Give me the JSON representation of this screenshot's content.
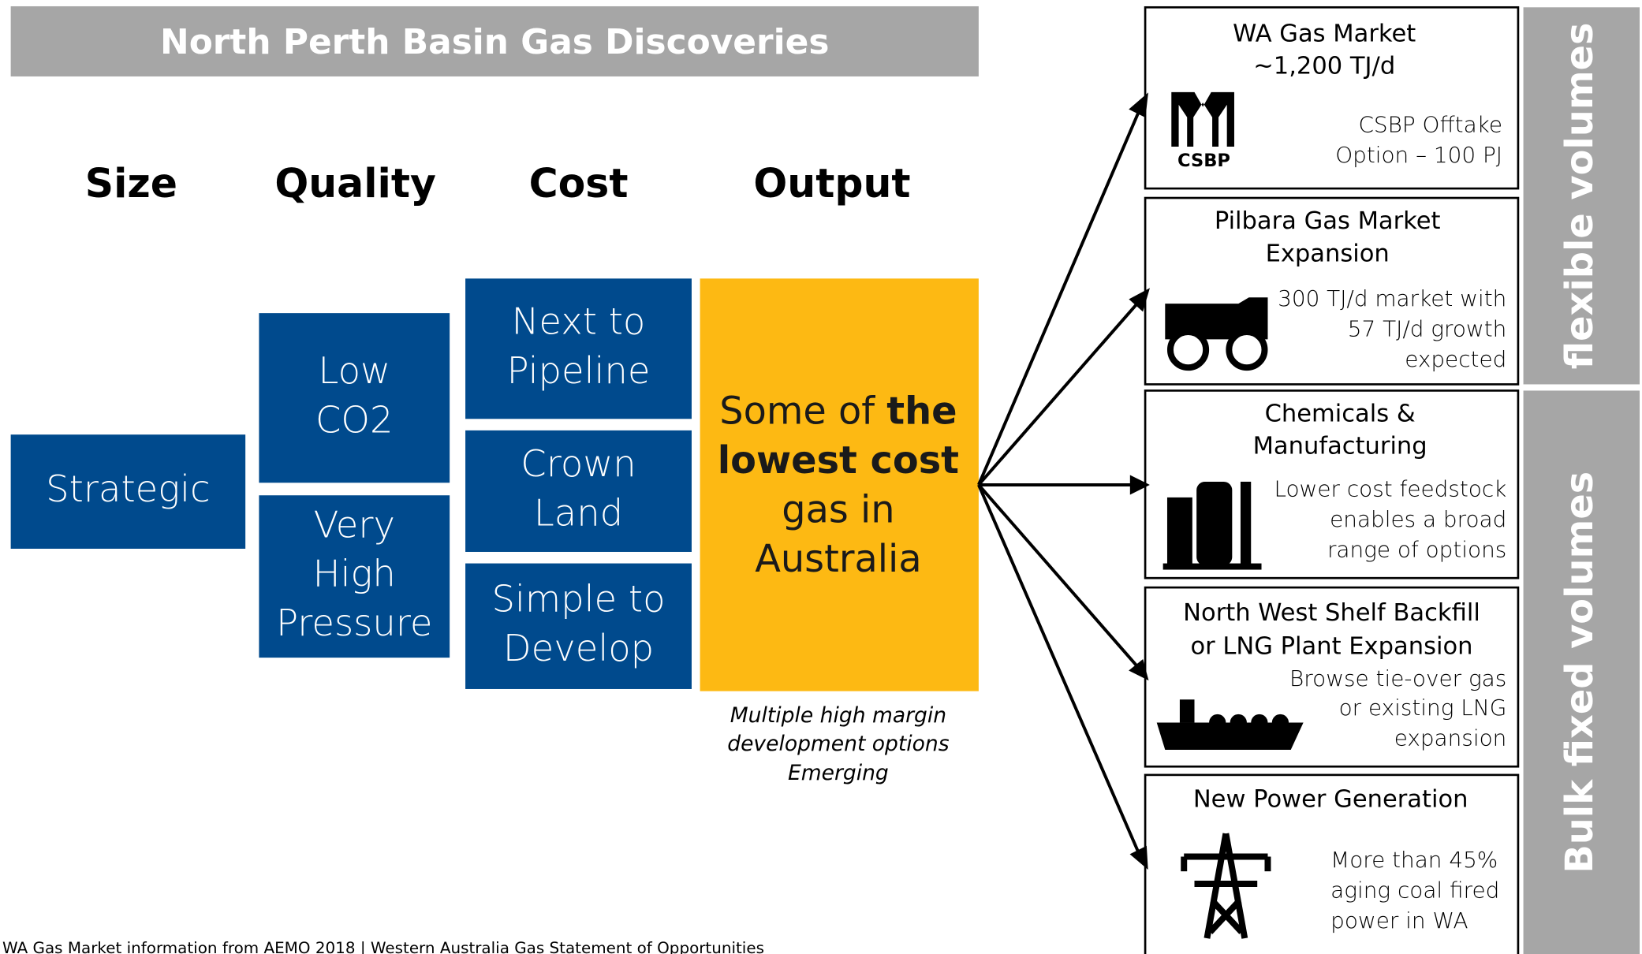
{
  "header": {
    "title": "North Perth Basin Gas Discoveries"
  },
  "columns": [
    "Size",
    "Quality",
    "Cost",
    "Output"
  ],
  "boxes": [
    {
      "lines": [
        "Strategic"
      ]
    },
    {
      "lines": [
        "Low",
        "CO2"
      ]
    },
    {
      "lines": [
        "Very",
        "High",
        "Pressure"
      ]
    },
    {
      "lines": [
        "Next to",
        "Pipeline"
      ]
    },
    {
      "lines": [
        "Crown",
        "Land"
      ]
    },
    {
      "lines": [
        "Simple to",
        "Develop"
      ]
    }
  ],
  "output": {
    "lines": [
      [
        {
          "text": "Some of "
        },
        {
          "text": "the",
          "bold": true
        }
      ],
      [
        {
          "text": "lowest cost",
          "bold": true
        }
      ],
      [
        {
          "text": "gas in"
        }
      ],
      [
        {
          "text": "Australia"
        }
      ]
    ],
    "note": [
      "Multiple high margin",
      "development options",
      "Emerging"
    ]
  },
  "markets": [
    {
      "title": [
        "WA Gas Market",
        "~1,200 TJ/d"
      ],
      "logo": "CSBP",
      "description": [
        "CSBP Offtake",
        "Option – 100 PJ"
      ]
    },
    {
      "title": [
        "Pilbara Gas Market",
        "Expansion"
      ],
      "description": [
        "300 TJ/d market with",
        "57 TJ/d growth",
        "expected"
      ]
    },
    {
      "title": [
        "Chemicals &",
        "Manufacturing"
      ],
      "description": [
        "Lower cost feedstock",
        "enables a broad",
        "range of options"
      ]
    },
    {
      "title": [
        "North West Shelf Backfill",
        "or LNG Plant Expansion"
      ],
      "description": [
        "Browse tie-over gas",
        "or existing LNG",
        "expansion"
      ]
    },
    {
      "title": [
        "New Power Generation"
      ],
      "description": [
        "More than 45%",
        "aging coal fired",
        "power in WA"
      ]
    }
  ],
  "side_labels": [
    "flexible volumes",
    "Bulk fixed volumes"
  ],
  "footnote": "WA Gas Market information from AEMO 2018 | Western Australia Gas Statement of Opportunities"
}
